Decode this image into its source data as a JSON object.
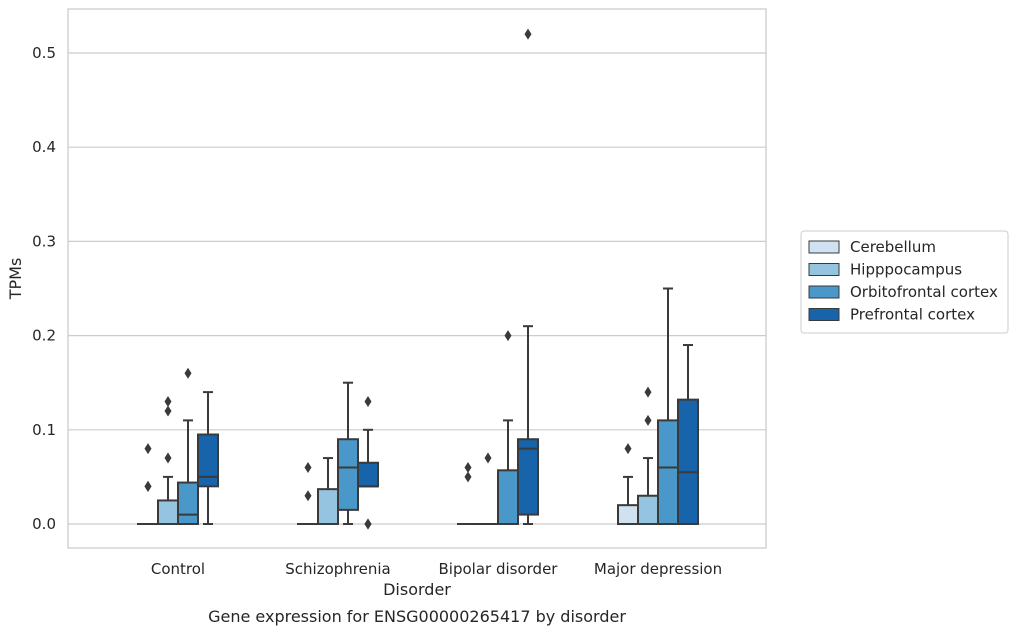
{
  "chart_data": {
    "type": "box",
    "title": "",
    "xlabel": "Disorder",
    "ylabel": "TPMs",
    "caption": "Gene expression for ENSG00000265417 by disorder",
    "categories": [
      "Control",
      "Schizophrenia",
      "Bipolar disorder",
      "Major depression"
    ],
    "ylim": [
      -0.025,
      0.547
    ],
    "yticks": [
      0.0,
      0.1,
      0.2,
      0.3,
      0.4,
      0.5
    ],
    "ytick_labels": [
      "0.0",
      "0.1",
      "0.2",
      "0.3",
      "0.4",
      "0.5"
    ],
    "grid": true,
    "legend_position": "right-center",
    "series": [
      {
        "name": "Cerebellum",
        "color": "#d0e1f2",
        "boxes": [
          {
            "category": "Control",
            "whisker_low": 0,
            "q1": 0,
            "median": 0,
            "q3": 0,
            "whisker_high": 0,
            "outliers": [
              0.04,
              0.04,
              0.08
            ]
          },
          {
            "category": "Schizophrenia",
            "whisker_low": 0,
            "q1": 0,
            "median": 0,
            "q3": 0,
            "whisker_high": 0,
            "outliers": [
              0.03,
              0.06
            ]
          },
          {
            "category": "Bipolar disorder",
            "whisker_low": 0,
            "q1": 0,
            "median": 0,
            "q3": 0,
            "whisker_high": 0,
            "outliers": [
              0.05,
              0.06
            ]
          },
          {
            "category": "Major depression",
            "whisker_low": 0,
            "q1": 0,
            "median": 0,
            "q3": 0.02,
            "whisker_high": 0.05,
            "outliers": [
              0.08
            ]
          }
        ]
      },
      {
        "name": "Hipppocampus",
        "color": "#94c4df",
        "boxes": [
          {
            "category": "Control",
            "whisker_low": 0,
            "q1": 0,
            "median": 0,
            "q3": 0.025,
            "whisker_high": 0.05,
            "outliers": [
              0.07,
              0.12,
              0.13
            ]
          },
          {
            "category": "Schizophrenia",
            "whisker_low": 0,
            "q1": 0,
            "median": 0,
            "q3": 0.037,
            "whisker_high": 0.07,
            "outliers": []
          },
          {
            "category": "Bipolar disorder",
            "whisker_low": 0,
            "q1": 0,
            "median": 0,
            "q3": 0,
            "whisker_high": 0,
            "outliers": [
              0.07
            ]
          },
          {
            "category": "Major depression",
            "whisker_low": 0,
            "q1": 0,
            "median": 0,
            "q3": 0.03,
            "whisker_high": 0.07,
            "outliers": [
              0.11,
              0.14
            ]
          }
        ]
      },
      {
        "name": "Orbitofrontal cortex",
        "color": "#4a98c9",
        "boxes": [
          {
            "category": "Control",
            "whisker_low": 0,
            "q1": 0,
            "median": 0.01,
            "q3": 0.044,
            "whisker_high": 0.11,
            "outliers": [
              0.16
            ]
          },
          {
            "category": "Schizophrenia",
            "whisker_low": 0,
            "q1": 0.015,
            "median": 0.06,
            "q3": 0.09,
            "whisker_high": 0.15,
            "outliers": []
          },
          {
            "category": "Bipolar disorder",
            "whisker_low": 0,
            "q1": 0,
            "median": 0,
            "q3": 0.057,
            "whisker_high": 0.11,
            "outliers": [
              0.2
            ]
          },
          {
            "category": "Major depression",
            "whisker_low": 0,
            "q1": 0,
            "median": 0.06,
            "q3": 0.11,
            "whisker_high": 0.25,
            "outliers": []
          }
        ]
      },
      {
        "name": "Prefrontal cortex",
        "color": "#1764ab",
        "boxes": [
          {
            "category": "Control",
            "whisker_low": 0,
            "q1": 0.04,
            "median": 0.05,
            "q3": 0.095,
            "whisker_high": 0.14,
            "outliers": []
          },
          {
            "category": "Schizophrenia",
            "whisker_low": 0.04,
            "q1": 0.04,
            "median": 0.04,
            "q3": 0.065,
            "whisker_high": 0.1,
            "outliers": [
              0.0,
              0.0,
              0.13
            ]
          },
          {
            "category": "Bipolar disorder",
            "whisker_low": 0,
            "q1": 0.01,
            "median": 0.08,
            "q3": 0.09,
            "whisker_high": 0.21,
            "outliers": [
              0.52
            ]
          },
          {
            "category": "Major depression",
            "whisker_low": 0,
            "q1": 0,
            "median": 0.055,
            "q3": 0.132,
            "whisker_high": 0.19,
            "outliers": []
          }
        ]
      }
    ]
  }
}
